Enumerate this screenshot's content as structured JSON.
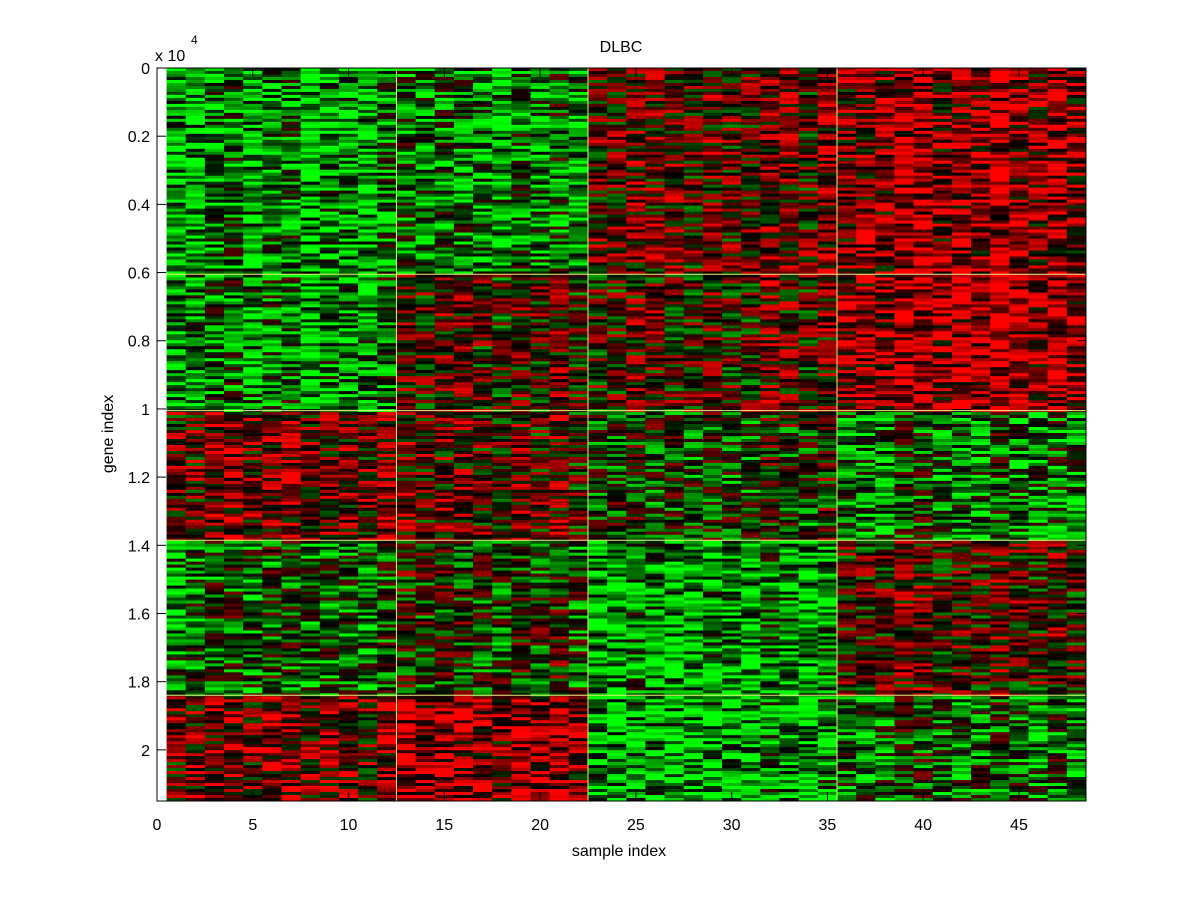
{
  "chart_data": {
    "type": "heatmap",
    "title": "DLBC",
    "xlabel": "sample index",
    "ylabel": "gene index",
    "y_exponent_label": "x 10",
    "y_exponent_power": "4",
    "xlim": [
      0,
      48.5
    ],
    "ylim": [
      0,
      21500
    ],
    "y_reversed": true,
    "colormap": [
      "#00ff00",
      "#000000",
      "#ff0000"
    ],
    "x_ticks": [
      0,
      5,
      10,
      15,
      20,
      25,
      30,
      35,
      40,
      45
    ],
    "x_tick_labels": [
      "0",
      "5",
      "10",
      "15",
      "20",
      "25",
      "30",
      "35",
      "40",
      "45"
    ],
    "y_ticks": [
      0,
      2000,
      4000,
      6000,
      8000,
      10000,
      12000,
      14000,
      16000,
      18000,
      20000
    ],
    "y_tick_labels": [
      "0",
      "0.2",
      "0.4",
      "0.6",
      "0.8",
      "1",
      "1.2",
      "1.4",
      "1.6",
      "1.8",
      "2"
    ],
    "sample_range": [
      1,
      48
    ],
    "sample_cluster_boundaries": [
      12.5,
      22.5,
      35.5
    ],
    "gene_cluster_boundaries": [
      6050,
      10050,
      13850,
      18400
    ],
    "block_mean_expression": {
      "sample_clusters": [
        "1-12",
        "13-22",
        "23-35",
        "36-48"
      ],
      "gene_clusters": [
        "0-6050",
        "6050-10050",
        "10050-13850",
        "13850-18400",
        "18400-21500"
      ],
      "values": [
        [
          -0.55,
          -0.45,
          0.3,
          0.55
        ],
        [
          -0.45,
          0.15,
          0.2,
          0.65
        ],
        [
          0.35,
          0.2,
          -0.1,
          -0.35
        ],
        [
          -0.3,
          -0.1,
          -0.55,
          0.2
        ],
        [
          0.4,
          0.55,
          -0.6,
          -0.3
        ]
      ]
    },
    "grid": false,
    "legend": "none"
  }
}
